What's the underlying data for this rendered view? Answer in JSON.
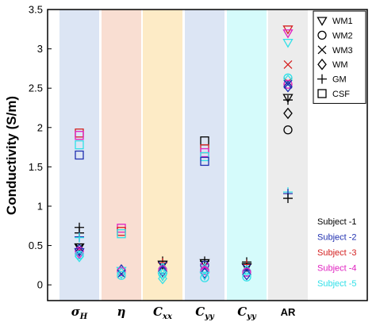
{
  "chart_data": {
    "type": "scatter",
    "ylabel": "Conductivity (S/m)",
    "ylim": [
      -0.2,
      3.5
    ],
    "yticks": [
      0,
      0.5,
      1,
      1.5,
      2,
      2.5,
      3,
      3.5
    ],
    "ytick_labels": [
      "0",
      "0.5",
      "1",
      "1.5",
      "2",
      "2.5",
      "3",
      "3.5"
    ],
    "categories": [
      {
        "main": "σ",
        "sub": "H",
        "band_color": "#dce5f4"
      },
      {
        "main": "η",
        "sub": "",
        "band_color": "#f9ded2"
      },
      {
        "main": "C",
        "sub": "xx",
        "band_color": "#fdebc6"
      },
      {
        "main": "C",
        "sub": "yy",
        "band_color": "#dce5f4"
      },
      {
        "main": "C",
        "sub": "yy",
        "band_color": "#d5fbfb"
      },
      {
        "main": "AR",
        "sub": "",
        "band_color": "#ececec"
      }
    ],
    "tissue_legend": [
      {
        "name": "WM1",
        "marker": "triangle-down"
      },
      {
        "name": "WM2",
        "marker": "circle"
      },
      {
        "name": "WM3",
        "marker": "x"
      },
      {
        "name": "WM",
        "marker": "diamond"
      },
      {
        "name": "GM",
        "marker": "plus"
      },
      {
        "name": "CSF",
        "marker": "square"
      }
    ],
    "subject_legend": [
      {
        "name": "Subject -1",
        "color": "#000000"
      },
      {
        "name": "Subject -2",
        "color": "#1f2fb0"
      },
      {
        "name": "Subject -3",
        "color": "#d42020"
      },
      {
        "name": "Subject -4",
        "color": "#e020c0"
      },
      {
        "name": "Subject -5",
        "color": "#30e0e8"
      }
    ],
    "points": [
      {
        "cat": 0,
        "marker": "square",
        "subject": 2,
        "y": 1.93
      },
      {
        "cat": 0,
        "marker": "square",
        "subject": 3,
        "y": 1.9
      },
      {
        "cat": 0,
        "marker": "square",
        "subject": 4,
        "y": 1.78
      },
      {
        "cat": 0,
        "marker": "square",
        "subject": 1,
        "y": 1.65
      },
      {
        "cat": 0,
        "marker": "plus",
        "subject": 0,
        "y": 0.73
      },
      {
        "cat": 0,
        "marker": "plus",
        "subject": 0,
        "y": 0.66
      },
      {
        "cat": 0,
        "marker": "plus",
        "subject": 1,
        "y": 0.61
      },
      {
        "cat": 0,
        "marker": "plus",
        "subject": 4,
        "y": 0.6
      },
      {
        "cat": 0,
        "marker": "triangle-down",
        "subject": 0,
        "y": 0.48
      },
      {
        "cat": 0,
        "marker": "x",
        "subject": 0,
        "y": 0.47
      },
      {
        "cat": 0,
        "marker": "diamond",
        "subject": 1,
        "y": 0.45
      },
      {
        "cat": 0,
        "marker": "circle",
        "subject": 3,
        "y": 0.43
      },
      {
        "cat": 0,
        "marker": "triangle-down",
        "subject": 1,
        "y": 0.42
      },
      {
        "cat": 0,
        "marker": "diamond",
        "subject": 3,
        "y": 0.4
      },
      {
        "cat": 0,
        "marker": "circle",
        "subject": 4,
        "y": 0.38
      },
      {
        "cat": 0,
        "marker": "diamond",
        "subject": 4,
        "y": 0.36
      },
      {
        "cat": 1,
        "marker": "square",
        "subject": 3,
        "y": 0.72
      },
      {
        "cat": 1,
        "marker": "square",
        "subject": 2,
        "y": 0.68
      },
      {
        "cat": 1,
        "marker": "square",
        "subject": 4,
        "y": 0.65
      },
      {
        "cat": 1,
        "marker": "diamond",
        "subject": 1,
        "y": 0.19
      },
      {
        "cat": 1,
        "marker": "triangle-down",
        "subject": 4,
        "y": 0.18
      },
      {
        "cat": 1,
        "marker": "circle",
        "subject": 3,
        "y": 0.17
      },
      {
        "cat": 1,
        "marker": "diamond",
        "subject": 4,
        "y": 0.15
      },
      {
        "cat": 1,
        "marker": "x",
        "subject": 1,
        "y": 0.14
      },
      {
        "cat": 1,
        "marker": "circle",
        "subject": 4,
        "y": 0.12
      },
      {
        "cat": 2,
        "marker": "plus",
        "subject": 0,
        "y": 0.3
      },
      {
        "cat": 2,
        "marker": "plus",
        "subject": 2,
        "y": 0.28
      },
      {
        "cat": 2,
        "marker": "triangle-down",
        "subject": 0,
        "y": 0.26
      },
      {
        "cat": 2,
        "marker": "x",
        "subject": 1,
        "y": 0.24
      },
      {
        "cat": 2,
        "marker": "diamond",
        "subject": 4,
        "y": 0.21
      },
      {
        "cat": 2,
        "marker": "circle",
        "subject": 3,
        "y": 0.19
      },
      {
        "cat": 2,
        "marker": "diamond",
        "subject": 1,
        "y": 0.17
      },
      {
        "cat": 2,
        "marker": "circle",
        "subject": 4,
        "y": 0.14
      },
      {
        "cat": 2,
        "marker": "triangle-down",
        "subject": 4,
        "y": 0.11
      },
      {
        "cat": 2,
        "marker": "diamond",
        "subject": 4,
        "y": 0.08
      },
      {
        "cat": 3,
        "marker": "square",
        "subject": 0,
        "y": 1.83
      },
      {
        "cat": 3,
        "marker": "square",
        "subject": 2,
        "y": 1.73
      },
      {
        "cat": 3,
        "marker": "square",
        "subject": 3,
        "y": 1.68
      },
      {
        "cat": 3,
        "marker": "square",
        "subject": 4,
        "y": 1.63
      },
      {
        "cat": 3,
        "marker": "square",
        "subject": 1,
        "y": 1.57
      },
      {
        "cat": 3,
        "marker": "plus",
        "subject": 0,
        "y": 0.3
      },
      {
        "cat": 3,
        "marker": "triangle-down",
        "subject": 0,
        "y": 0.28
      },
      {
        "cat": 3,
        "marker": "circle",
        "subject": 1,
        "y": 0.25
      },
      {
        "cat": 3,
        "marker": "x",
        "subject": 3,
        "y": 0.23
      },
      {
        "cat": 3,
        "marker": "diamond",
        "subject": 4,
        "y": 0.2
      },
      {
        "cat": 3,
        "marker": "circle",
        "subject": 3,
        "y": 0.18
      },
      {
        "cat": 3,
        "marker": "diamond",
        "subject": 1,
        "y": 0.15
      },
      {
        "cat": 3,
        "marker": "triangle-down",
        "subject": 4,
        "y": 0.12
      },
      {
        "cat": 3,
        "marker": "circle",
        "subject": 4,
        "y": 0.09
      },
      {
        "cat": 4,
        "marker": "plus",
        "subject": 0,
        "y": 0.29
      },
      {
        "cat": 4,
        "marker": "plus",
        "subject": 2,
        "y": 0.26
      },
      {
        "cat": 4,
        "marker": "triangle-down",
        "subject": 0,
        "y": 0.23
      },
      {
        "cat": 4,
        "marker": "x",
        "subject": 1,
        "y": 0.21
      },
      {
        "cat": 4,
        "marker": "diamond",
        "subject": 4,
        "y": 0.18
      },
      {
        "cat": 4,
        "marker": "circle",
        "subject": 3,
        "y": 0.16
      },
      {
        "cat": 4,
        "marker": "diamond",
        "subject": 1,
        "y": 0.13
      },
      {
        "cat": 4,
        "marker": "circle",
        "subject": 4,
        "y": 0.1
      },
      {
        "cat": 5,
        "marker": "triangle-down",
        "subject": 2,
        "y": 3.25
      },
      {
        "cat": 5,
        "marker": "triangle-down",
        "subject": 3,
        "y": 3.2
      },
      {
        "cat": 5,
        "marker": "triangle-down",
        "subject": 4,
        "y": 3.08
      },
      {
        "cat": 5,
        "marker": "x",
        "subject": 2,
        "y": 2.8
      },
      {
        "cat": 5,
        "marker": "x",
        "subject": 2,
        "y": 2.58
      },
      {
        "cat": 5,
        "marker": "circle",
        "subject": 4,
        "y": 2.63
      },
      {
        "cat": 5,
        "marker": "diamond",
        "subject": 4,
        "y": 2.6
      },
      {
        "cat": 5,
        "marker": "circle",
        "subject": 3,
        "y": 2.55
      },
      {
        "cat": 5,
        "marker": "x",
        "subject": 1,
        "y": 2.55
      },
      {
        "cat": 5,
        "marker": "diamond",
        "subject": 1,
        "y": 2.52
      },
      {
        "cat": 5,
        "marker": "triangle-down",
        "subject": 0,
        "y": 2.38
      },
      {
        "cat": 5,
        "marker": "plus",
        "subject": 0,
        "y": 2.35
      },
      {
        "cat": 5,
        "marker": "diamond",
        "subject": 0,
        "y": 2.18
      },
      {
        "cat": 5,
        "marker": "circle",
        "subject": 0,
        "y": 1.97
      },
      {
        "cat": 5,
        "marker": "plus",
        "subject": 4,
        "y": 1.18
      },
      {
        "cat": 5,
        "marker": "plus",
        "subject": 1,
        "y": 1.16
      },
      {
        "cat": 5,
        "marker": "plus",
        "subject": 0,
        "y": 1.1
      }
    ]
  }
}
